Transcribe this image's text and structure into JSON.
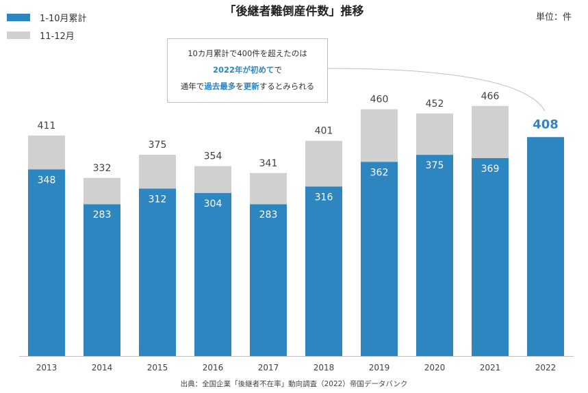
{
  "title": "「後継者難倒産件数」推移",
  "unit_label": "単位：件",
  "legend": [
    {
      "label": "1-10月累計",
      "color": "#2e86c1"
    },
    {
      "label": "11-12月",
      "color": "#d0d0d0"
    }
  ],
  "callout": {
    "line1": "10カ月累計で400件を超えたのは",
    "line2_hl": "2022年が初めて",
    "line2_rest": "で",
    "line3_a": "通年で",
    "line3_hl1": "過去最多",
    "line3_b": "を",
    "line3_hl2": "更新",
    "line3_c": "するとみられる"
  },
  "source": "出典：全国企業「後継者不在率」動向調査（2022）帝国データバンク",
  "colors": {
    "blue": "#2e86c1",
    "gray": "#d0d0d0",
    "highlight_label": "#2e86c1"
  },
  "chart_data": {
    "type": "bar",
    "stacked": true,
    "categories": [
      "2013",
      "2014",
      "2015",
      "2016",
      "2017",
      "2018",
      "2019",
      "2020",
      "2021",
      "2022"
    ],
    "series": [
      {
        "name": "1-10月累計",
        "values": [
          348,
          283,
          312,
          304,
          283,
          316,
          362,
          375,
          369,
          408
        ]
      },
      {
        "name": "11-12月",
        "values": [
          63,
          49,
          63,
          50,
          58,
          85,
          98,
          77,
          97,
          null
        ]
      }
    ],
    "totals": [
      411,
      332,
      375,
      354,
      341,
      401,
      460,
      452,
      466,
      408
    ],
    "ylim": [
      0,
      500
    ],
    "grid": false,
    "legend_position": "top-left"
  }
}
